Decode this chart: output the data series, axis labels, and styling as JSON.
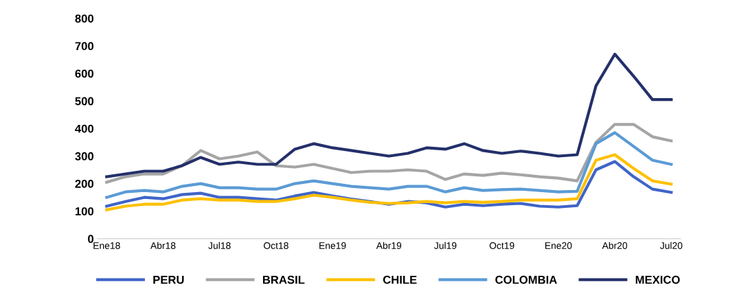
{
  "chart_data": {
    "type": "line",
    "categories": [
      "Ene18",
      null,
      null,
      "Abr18",
      null,
      null,
      "Jul18",
      null,
      null,
      "Oct18",
      null,
      null,
      "Ene19",
      null,
      null,
      "Abr19",
      null,
      null,
      "Jul19",
      null,
      null,
      "Oct19",
      null,
      null,
      "Ene20",
      null,
      null,
      "Abr20",
      null,
      null,
      "Jul20"
    ],
    "series": [
      {
        "name": "PERU",
        "color": "#3f65c8",
        "values": [
          118,
          135,
          150,
          145,
          160,
          165,
          150,
          150,
          145,
          140,
          155,
          168,
          155,
          144,
          135,
          125,
          135,
          130,
          115,
          125,
          120,
          125,
          128,
          118,
          115,
          120,
          250,
          280,
          225,
          180,
          168
        ]
      },
      {
        "name": "BRASIL",
        "color": "#a5a5a5",
        "values": [
          205,
          225,
          235,
          235,
          265,
          320,
          290,
          300,
          315,
          265,
          260,
          270,
          255,
          240,
          245,
          245,
          250,
          245,
          215,
          235,
          230,
          238,
          232,
          225,
          220,
          210,
          350,
          415,
          415,
          370,
          355
        ]
      },
      {
        "name": "CHILE",
        "color": "#ffc000",
        "values": [
          105,
          118,
          125,
          125,
          140,
          145,
          140,
          140,
          135,
          135,
          145,
          158,
          150,
          140,
          132,
          128,
          130,
          135,
          130,
          135,
          132,
          135,
          140,
          140,
          140,
          145,
          285,
          305,
          255,
          210,
          198
        ]
      },
      {
        "name": "COLOMBIA",
        "color": "#5b9bd5",
        "values": [
          150,
          170,
          175,
          170,
          190,
          200,
          185,
          185,
          180,
          180,
          200,
          210,
          200,
          190,
          185,
          180,
          190,
          190,
          170,
          185,
          175,
          178,
          180,
          175,
          170,
          172,
          345,
          385,
          335,
          285,
          270
        ]
      },
      {
        "name": "MEXICO",
        "color": "#24306a",
        "values": [
          225,
          235,
          245,
          245,
          265,
          295,
          270,
          278,
          270,
          270,
          325,
          345,
          330,
          320,
          310,
          300,
          310,
          330,
          325,
          345,
          320,
          310,
          318,
          310,
          300,
          305,
          555,
          670,
          590,
          505,
          505
        ]
      }
    ],
    "ylim": [
      0,
      800
    ],
    "yticks": [
      0,
      100,
      200,
      300,
      400,
      500,
      600,
      700,
      800
    ],
    "grid": false,
    "legend": "bottom",
    "marker": "none",
    "line_style": "solid"
  }
}
